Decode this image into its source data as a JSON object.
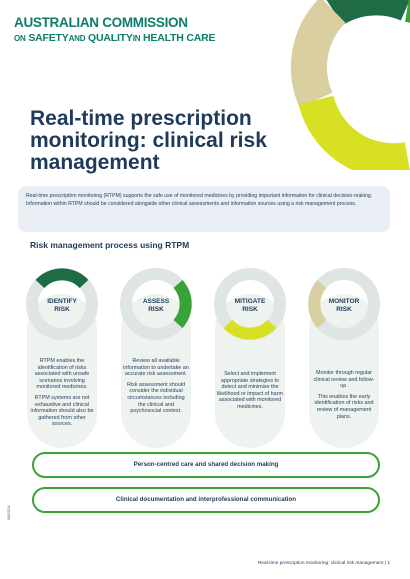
{
  "logo": {
    "line1": "AUSTRALIAN COMMISSION",
    "line2_on": "ON",
    "line2_sq": "SAFETY",
    "line2_and": "AND",
    "line2_q": "QUALITY",
    "line2_in": "IN",
    "line2_hc": "HEALTH CARE"
  },
  "title": "Real-time prescription monitoring: clinical risk management",
  "intro": "Real-time prescription monitoring (RTPM) supports the safe use of monitored medicines by providing important information for clinical decision-making. Information within RTPM should be considered alongside other clinical assessments and information sources using a risk management process.",
  "subheading": "Risk management process using RTPM",
  "steps": [
    {
      "label": "IDENTIFY\nRISK",
      "paragraphs": [
        "RTPM enables the identification of risks associated with unsafe scenarios involving monitored medicines.",
        "RTPM systems are not exhaustive and clinical information should also be gathered from other sources."
      ]
    },
    {
      "label": "ASSESS\nRISK",
      "paragraphs": [
        "Review all available information to undertake an accurate risk assessment.",
        "Risk assessment should consider the individual circumstances including the clinical and psychosocial context."
      ]
    },
    {
      "label": "MITIGATE\nRISK",
      "paragraphs": [
        "Select and implement appropriate strategies to detect and minimise the likelihood or impact of harm associated with monitored medicines."
      ]
    },
    {
      "label": "MONITOR\nRISK",
      "paragraphs": [
        "Monitor through regular clinical review and follow-up.",
        "This enables the early identification of risks and review of management plans."
      ]
    }
  ],
  "bars": [
    "Person-centred care and shared decision making",
    "Clinical documentation and interprofessional communication"
  ],
  "code": "08/2024",
  "footer": "Real-time prescription monitoring: clinical risk management  |  1",
  "colors": {
    "dark_green": "#1e6b45",
    "green": "#3aa335",
    "yellow": "#d8e024",
    "tan": "#d9cfa0",
    "navy": "#1f3a5a"
  }
}
